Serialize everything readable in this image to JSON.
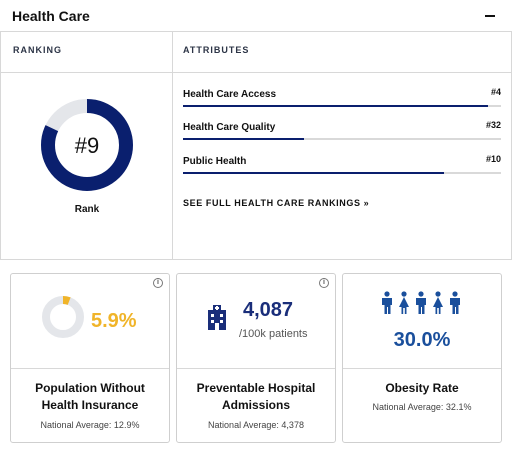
{
  "header": {
    "title": "Health Care"
  },
  "ranking": {
    "column_label": "RANKING",
    "rank_text": "#9",
    "rank_caption": "Rank",
    "ring_fill_fraction": 0.82
  },
  "attributes": {
    "column_label": "ATTRIBUTES",
    "items": [
      {
        "label": "Health Care Access",
        "rank": "#4",
        "bar_fraction": 0.96
      },
      {
        "label": "Health Care Quality",
        "rank": "#32",
        "bar_fraction": 0.38
      },
      {
        "label": "Public Health",
        "rank": "#10",
        "bar_fraction": 0.82
      }
    ],
    "see_all_link": "SEE FULL HEALTH CARE RANKINGS »"
  },
  "metrics": [
    {
      "value": "5.9%",
      "ring_fill_fraction": 0.059,
      "label": "Population Without Health Insurance",
      "national_average": "National Average: 12.9%",
      "info_icon": "i"
    },
    {
      "value": "4,087",
      "unit": "/100k patients",
      "label": "Preventable Hospital Admissions",
      "national_average": "National Average: 4,378",
      "info_icon": "i"
    },
    {
      "value": "30.0%",
      "people_total": 5,
      "label": "Obesity Rate",
      "national_average": "National Average: 32.1%"
    }
  ],
  "colors": {
    "navy": "#0a1f6e",
    "ring_track": "#e4e6ea",
    "gold": "#f0b429",
    "blue_stat": "#1a4f9c",
    "bar_track": "#d9d9d9"
  }
}
